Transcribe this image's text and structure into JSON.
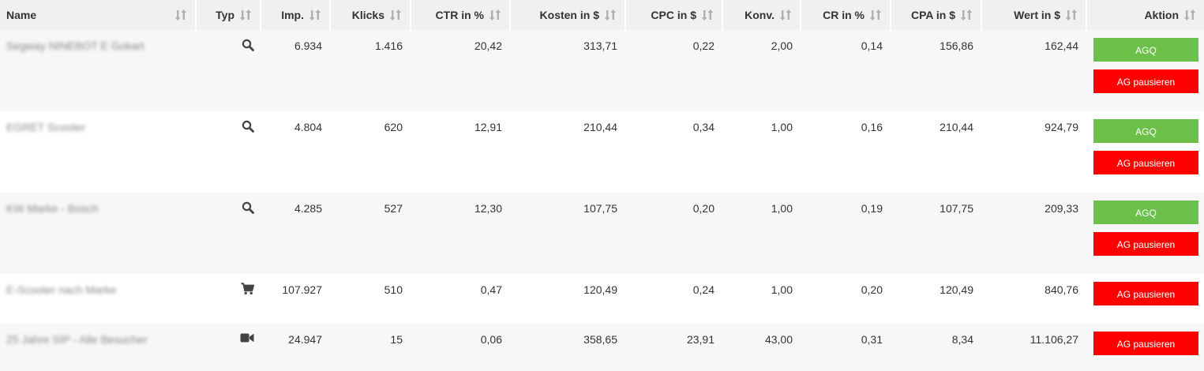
{
  "columns": [
    "Name",
    "Typ",
    "Imp.",
    "Klicks",
    "CTR in %",
    "Kosten in $",
    "CPC in $",
    "Konv.",
    "CR in %",
    "CPA in $",
    "Wert in $",
    "Aktion"
  ],
  "rows": [
    {
      "name": "Segway NINEBOT E Gokart",
      "type_icon": "search-icon",
      "imp": "6.934",
      "klicks": "1.416",
      "ctr": "20,42",
      "kosten": "313,71",
      "cpc": "0,22",
      "konv": "2,00",
      "cr": "0,14",
      "cpa": "156,86",
      "wert": "162,44",
      "agq_label": "AGQ",
      "pause_label": "AG pausieren"
    },
    {
      "name": "EGRET Scooter",
      "type_icon": "search-icon",
      "imp": "4.804",
      "klicks": "620",
      "ctr": "12,91",
      "kosten": "210,44",
      "cpc": "0,34",
      "konv": "1,00",
      "cr": "0,16",
      "cpa": "210,44",
      "wert": "924,79",
      "agq_label": "AGQ",
      "pause_label": "AG pausieren"
    },
    {
      "name": "KW Marke - Bosch",
      "type_icon": "search-icon",
      "imp": "4.285",
      "klicks": "527",
      "ctr": "12,30",
      "kosten": "107,75",
      "cpc": "0,20",
      "konv": "1,00",
      "cr": "0,19",
      "cpa": "107,75",
      "wert": "209,33",
      "agq_label": "AGQ",
      "pause_label": "AG pausieren"
    },
    {
      "name": "E-Scooter nach Marke",
      "type_icon": "shopping-cart-icon",
      "imp": "107.927",
      "klicks": "510",
      "ctr": "0,47",
      "kosten": "120,49",
      "cpc": "0,24",
      "konv": "1,00",
      "cr": "0,20",
      "cpa": "120,49",
      "wert": "840,76",
      "pause_label": "AG pausieren"
    },
    {
      "name": "25 Jahre SIP - Alle Besucher",
      "type_icon": "video-camera-icon",
      "imp": "24.947",
      "klicks": "15",
      "ctr": "0,06",
      "kosten": "358,65",
      "cpc": "23,91",
      "konv": "43,00",
      "cr": "0,31",
      "cpa": "8,34",
      "wert": "11.106,27",
      "pause_label": "AG pausieren"
    }
  ],
  "colors": {
    "header_bg": "#f0f0f0",
    "row_alt_bg": "#f7f7f7",
    "agq_button": "#6cc04a",
    "pause_button": "#ff0000",
    "sort_icon": "#b0b0b0"
  }
}
